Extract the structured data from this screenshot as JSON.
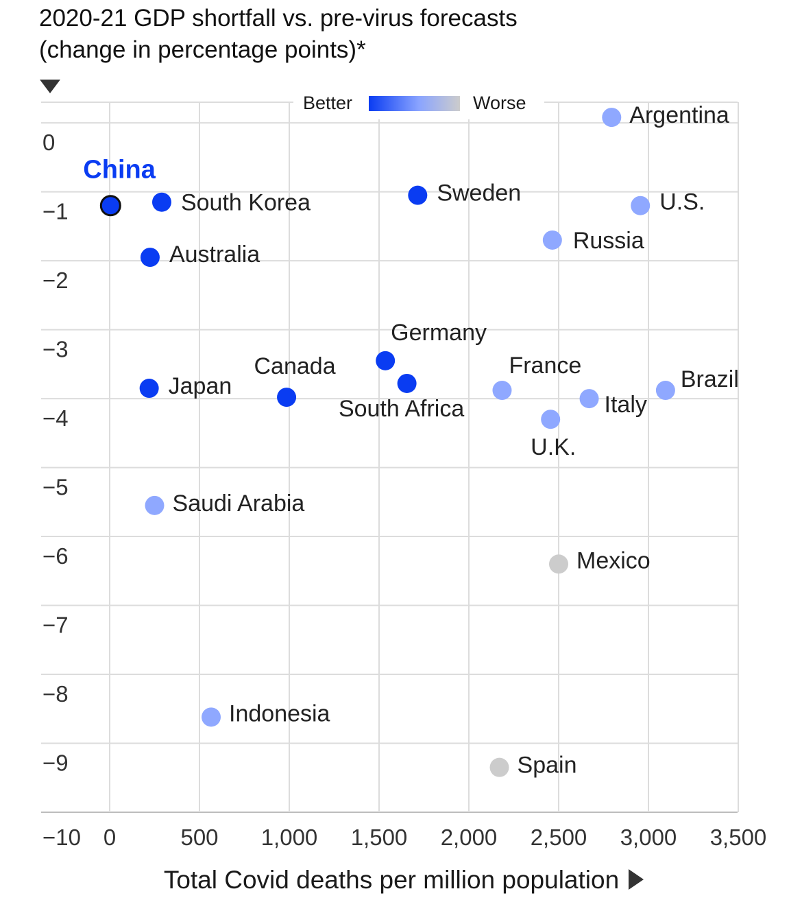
{
  "title_line1": "2020-21 GDP shortfall vs. pre-virus forecasts",
  "title_line2": "(change in percentage points)*",
  "legend": {
    "better": "Better",
    "worse": "Worse",
    "gradient_colors": [
      "#0a3cf2",
      "#8aa4ff",
      "#cccccc"
    ]
  },
  "colors": {
    "dark_blue": "#0a3cf2",
    "light_blue": "#8fa8ff",
    "gray": "#cccccc",
    "highlight_label": "#0a3cf2"
  },
  "chart_data": {
    "type": "scatter",
    "title": "2020-21 GDP shortfall vs. pre-virus forecasts",
    "subtitle": "(change in percentage points)*",
    "xlabel": "Total Covid deaths per million population",
    "ylabel": "",
    "xlim": [
      -375,
      3500
    ],
    "ylim": [
      -10,
      0.3
    ],
    "grid": true,
    "legend_position": "top-center",
    "x_ticks": [
      0,
      500,
      1000,
      1500,
      2000,
      2500,
      3000,
      3500
    ],
    "x_tick_labels": [
      "0",
      "500",
      "1,000",
      "1,500",
      "2,000",
      "2,500",
      "3,000",
      "3,500"
    ],
    "y_ticks": [
      0,
      -1,
      -2,
      -3,
      -4,
      -5,
      -6,
      -7,
      -8,
      -9,
      -10
    ],
    "y_tick_labels": [
      "0",
      "−1",
      "−2",
      "−3",
      "−4",
      "−5",
      "−6",
      "−7",
      "−8",
      "−9",
      "−10"
    ],
    "points": [
      {
        "name": "China",
        "x": 5,
        "y": -1.2,
        "color": "dark_blue",
        "highlight": true
      },
      {
        "name": "South Korea",
        "x": 290,
        "y": -1.15,
        "color": "dark_blue"
      },
      {
        "name": "Australia",
        "x": 225,
        "y": -1.95,
        "color": "dark_blue"
      },
      {
        "name": "Japan",
        "x": 220,
        "y": -3.85,
        "color": "dark_blue"
      },
      {
        "name": "Canada",
        "x": 985,
        "y": -3.98,
        "color": "dark_blue"
      },
      {
        "name": "Germany",
        "x": 1535,
        "y": -3.45,
        "color": "dark_blue"
      },
      {
        "name": "South Africa",
        "x": 1655,
        "y": -3.78,
        "color": "dark_blue"
      },
      {
        "name": "Sweden",
        "x": 1715,
        "y": -1.05,
        "color": "dark_blue"
      },
      {
        "name": "Argentina",
        "x": 2795,
        "y": 0.08,
        "color": "light_blue"
      },
      {
        "name": "U.S.",
        "x": 2955,
        "y": -1.2,
        "color": "light_blue"
      },
      {
        "name": "Russia",
        "x": 2465,
        "y": -1.7,
        "color": "light_blue"
      },
      {
        "name": "France",
        "x": 2185,
        "y": -3.88,
        "color": "light_blue"
      },
      {
        "name": "Italy",
        "x": 2670,
        "y": -4.0,
        "color": "light_blue"
      },
      {
        "name": "Brazil",
        "x": 3095,
        "y": -3.88,
        "color": "light_blue"
      },
      {
        "name": "U.K.",
        "x": 2455,
        "y": -4.3,
        "color": "light_blue"
      },
      {
        "name": "Saudi Arabia",
        "x": 250,
        "y": -5.55,
        "color": "light_blue"
      },
      {
        "name": "Indonesia",
        "x": 565,
        "y": -8.62,
        "color": "light_blue"
      },
      {
        "name": "Mexico",
        "x": 2500,
        "y": -6.4,
        "color": "gray"
      },
      {
        "name": "Spain",
        "x": 2170,
        "y": -9.35,
        "color": "gray"
      }
    ]
  }
}
